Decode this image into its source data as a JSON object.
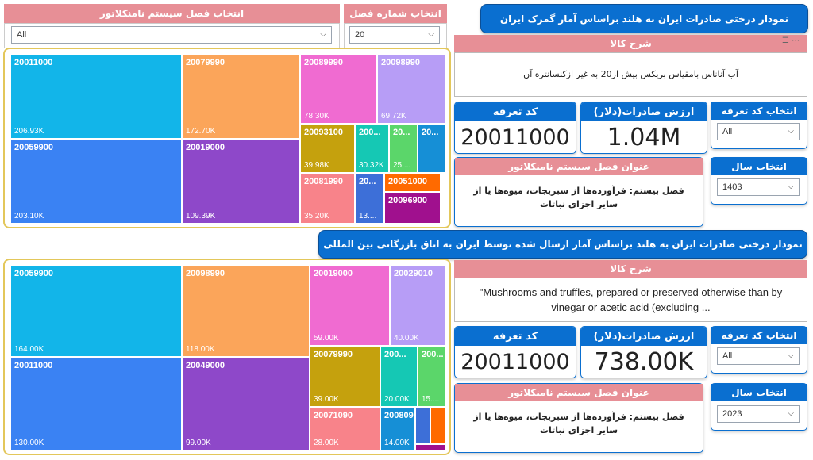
{
  "top": {
    "title": "نمودار درختی صادرات ایران به هلند براساس آمار گمرک ایران",
    "chapter_slicer": {
      "label": "انتخاب فصل سیستم نامنکلاتور",
      "value": "All"
    },
    "chapter_number_slicer": {
      "label": "انتخاب شماره فصل",
      "value": "20"
    },
    "goods_desc": {
      "header": "شرح کالا",
      "text": "آب آناناس بامقیاس بریکس بیش از20 به غیر ازکنسانتره آن"
    },
    "tariff_card": {
      "title": "کد تعرفه",
      "value": "20011000"
    },
    "export_card": {
      "title": "ارزش صادرات(دلار)",
      "value": "1.04M"
    },
    "tariff_slicer": {
      "label": "انتخاب کد تعرفه",
      "value": "All"
    },
    "year_slicer": {
      "label": "انتخاب سال",
      "value": "1403"
    },
    "chapter_title": {
      "header": "عنوان فصل سیستم نامنکلاتور",
      "text": "فصل بیستم: فرآورده‌ها از سبزیجات، میوه‌ها یا از سایر اجزای نباتات"
    },
    "treemap": [
      {
        "code": "20011000",
        "amount": "206.93K",
        "color": "#12b5e9"
      },
      {
        "code": "20059900",
        "amount": "203.10K",
        "color": "#3a82f3"
      },
      {
        "code": "20079990",
        "amount": "172.70K",
        "color": "#fba55a"
      },
      {
        "code": "20019000",
        "amount": "109.39K",
        "color": "#8e48c9"
      },
      {
        "code": "20089990",
        "amount": "78.30K",
        "color": "#f06bd1"
      },
      {
        "code": "20098990",
        "amount": "69.72K",
        "color": "#b79df6"
      },
      {
        "code": "20093100",
        "amount": "39.98K",
        "color": "#c5a10d"
      },
      {
        "code": "200...",
        "amount": "30.32K",
        "color": "#15c8b4"
      },
      {
        "code": "20...",
        "amount": "25....",
        "color": "#5bd66a"
      },
      {
        "code": "20...",
        "amount": "",
        "color": "#168fd6"
      },
      {
        "code": "20081990",
        "amount": "35.20K",
        "color": "#f8838a"
      },
      {
        "code": "20...",
        "amount": "13....",
        "color": "#3d6fd8"
      },
      {
        "code": "20051000",
        "amount": "",
        "color": "#ff6a00"
      },
      {
        "code": "20096900",
        "amount": "",
        "color": "#a0108e"
      }
    ]
  },
  "bottom": {
    "title": "نمودار درختی صادرات ایران به هلند براساس آمار ارسال شده توسط ایران به اتاق بازرگانی بین المللی",
    "goods_desc": {
      "header": "شرح کالا",
      "text": "\"Mushrooms and truffles, prepared or preserved otherwise than by vinegar or acetic acid (excluding ..."
    },
    "tariff_card": {
      "title": "کد تعرفه",
      "value": "20011000"
    },
    "export_card": {
      "title": "ارزش صادرات(دلار)",
      "value": "738.00K"
    },
    "tariff_slicer": {
      "label": "انتخاب کد تعرفه",
      "value": "All"
    },
    "year_slicer": {
      "label": "انتخاب سال",
      "value": "2023"
    },
    "chapter_title": {
      "header": "عنوان فصل سیستم نامنکلاتور",
      "text": "فصل بیستم: فرآورده‌ها از سبزیجات، میوه‌ها یا از سایر اجزای نباتات"
    },
    "treemap": [
      {
        "code": "20059900",
        "amount": "164.00K",
        "color": "#12b5e9"
      },
      {
        "code": "20011000",
        "amount": "130.00K",
        "color": "#3a82f3"
      },
      {
        "code": "20098990",
        "amount": "118.00K",
        "color": "#fba55a"
      },
      {
        "code": "20049000",
        "amount": "99.00K",
        "color": "#8e48c9"
      },
      {
        "code": "20019000",
        "amount": "59.00K",
        "color": "#f06bd1"
      },
      {
        "code": "20029010",
        "amount": "40.00K",
        "color": "#b79df6"
      },
      {
        "code": "20079990",
        "amount": "39.00K",
        "color": "#c5a10d"
      },
      {
        "code": "200...",
        "amount": "20.00K",
        "color": "#15c8b4"
      },
      {
        "code": "200...",
        "amount": "15....",
        "color": "#5bd66a"
      },
      {
        "code": "20071090",
        "amount": "28.00K",
        "color": "#f8838a"
      },
      {
        "code": "20080900",
        "amount": "14.00K",
        "color": "#168fd6"
      },
      {
        "code": "",
        "amount": "",
        "color": "#3d6fd8"
      },
      {
        "code": "",
        "amount": "",
        "color": "#ff6a00"
      },
      {
        "code": "",
        "amount": "",
        "color": "#a0108e"
      }
    ]
  }
}
